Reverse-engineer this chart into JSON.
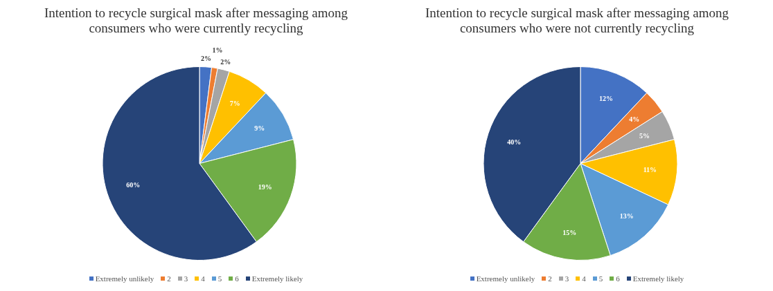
{
  "chart_data": [
    {
      "type": "pie",
      "title": "Intention to recycle surgical mask after messaging among consumers who were currently recycling",
      "categories": [
        "Extremely unlikely",
        "2",
        "3",
        "4",
        "5",
        "6",
        "Extremely likely"
      ],
      "values": [
        2,
        1,
        2,
        7,
        9,
        19,
        60
      ],
      "value_labels": [
        "2%",
        "1%",
        "2%",
        "7%",
        "9%",
        "19%",
        "60%"
      ],
      "colors": [
        "#4472c4",
        "#ed7d31",
        "#a5a5a5",
        "#ffc000",
        "#5b9bd5",
        "#70ad47",
        "#264478"
      ],
      "legend": "bottom"
    },
    {
      "type": "pie",
      "title": "Intention to recycle surgical mask after messaging among consumers who were not currently recycling",
      "categories": [
        "Extremely unlikely",
        "2",
        "3",
        "4",
        "5",
        "6",
        "Extremely likely"
      ],
      "values": [
        12,
        4,
        5,
        11,
        13,
        15,
        40
      ],
      "value_labels": [
        "12%",
        "4%",
        "5%",
        "11%",
        "13%",
        "15%",
        "40%"
      ],
      "colors": [
        "#4472c4",
        "#ed7d31",
        "#a5a5a5",
        "#ffc000",
        "#5b9bd5",
        "#70ad47",
        "#264478"
      ],
      "legend": "bottom"
    }
  ]
}
